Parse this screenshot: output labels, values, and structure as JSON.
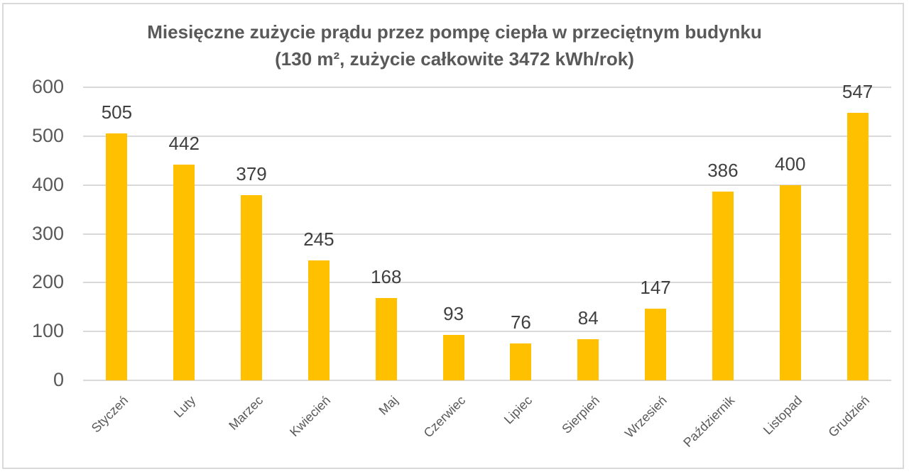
{
  "chart_data": {
    "type": "bar",
    "title": "Miesięczne zużycie prądu przez pompę ciepła w przeciętnym budynku",
    "subtitle": "(130 m², zużycie całkowite 3472 kWh/rok)",
    "xlabel": "",
    "ylabel": "",
    "ylim": [
      0,
      600
    ],
    "yticks": [
      "0",
      "100",
      "200",
      "300",
      "400",
      "500",
      "600"
    ],
    "grid": true,
    "legend": "none",
    "bar_color": "#ffc000",
    "categories": [
      "Styczeń",
      "Luty",
      "Marzec",
      "Kwiecień",
      "Maj",
      "Czerwiec",
      "Lipiec",
      "Sierpień",
      "Wrzesień",
      "Październik",
      "Listopad",
      "Grudzień"
    ],
    "values": [
      505,
      442,
      379,
      245,
      168,
      93,
      76,
      84,
      147,
      386,
      400,
      547
    ],
    "data_labels": [
      "505",
      "442",
      "379",
      "245",
      "168",
      "93",
      "76",
      "84",
      "147",
      "386",
      "400",
      "547"
    ]
  }
}
